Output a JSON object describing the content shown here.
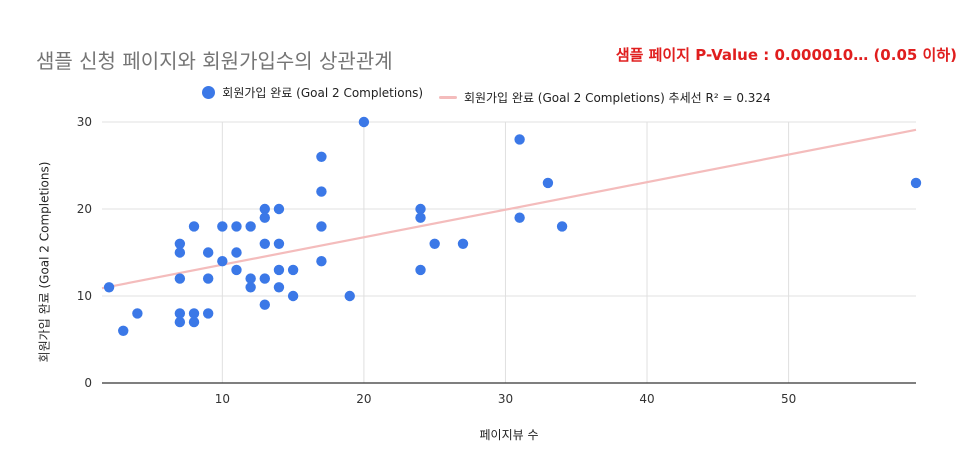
{
  "chart_data": {
    "type": "scatter",
    "title": "샘플 신청 페이지와 회원가입수의 상관관계",
    "xlabel": "페이지뷰 수",
    "ylabel": "회원가입 완료 (Goal 2 Completions)",
    "xlim": [
      1.5,
      59
    ],
    "ylim": [
      0,
      30
    ],
    "xticks": [
      10,
      20,
      30,
      40,
      50
    ],
    "yticks": [
      0,
      10,
      20,
      30
    ],
    "grid": true,
    "legend_position": "top",
    "annotation": "샘플 페이지 P-Value : 0.000010… (0.05 이하)",
    "series": [
      {
        "name": "회원가입 완료 (Goal 2 Completions)",
        "color": "#3b78e7",
        "points": [
          [
            2,
            11
          ],
          [
            3,
            6
          ],
          [
            4,
            8
          ],
          [
            7,
            16
          ],
          [
            7,
            15
          ],
          [
            7,
            12
          ],
          [
            7,
            8
          ],
          [
            7,
            7
          ],
          [
            8,
            18
          ],
          [
            8,
            8
          ],
          [
            8,
            7
          ],
          [
            9,
            15
          ],
          [
            9,
            12
          ],
          [
            9,
            8
          ],
          [
            10,
            18
          ],
          [
            10,
            14
          ],
          [
            11,
            18
          ],
          [
            11,
            15
          ],
          [
            11,
            13
          ],
          [
            12,
            18
          ],
          [
            12,
            12
          ],
          [
            12,
            11
          ],
          [
            13,
            20
          ],
          [
            13,
            19
          ],
          [
            13,
            16
          ],
          [
            13,
            12
          ],
          [
            13,
            9
          ],
          [
            14,
            20
          ],
          [
            14,
            16
          ],
          [
            14,
            13
          ],
          [
            14,
            11
          ],
          [
            15,
            13
          ],
          [
            15,
            10
          ],
          [
            17,
            26
          ],
          [
            17,
            22
          ],
          [
            17,
            18
          ],
          [
            17,
            14
          ],
          [
            19,
            10
          ],
          [
            20,
            30
          ],
          [
            24,
            20
          ],
          [
            24,
            19
          ],
          [
            24,
            13
          ],
          [
            25,
            16
          ],
          [
            27,
            16
          ],
          [
            31,
            28
          ],
          [
            31,
            19
          ],
          [
            33,
            23
          ],
          [
            34,
            18
          ],
          [
            59,
            23
          ]
        ]
      },
      {
        "name": "회원가입 완료 (Goal 2 Completions) 추세선 R² = 0.324",
        "type": "trendline",
        "color": "#f4bcbc",
        "x": [
          1.5,
          59
        ],
        "y": [
          10.9,
          29.1
        ]
      }
    ]
  },
  "colors": {
    "annotation": "#e01e1e",
    "grid": "#e0e0e0",
    "axis": "#333333"
  }
}
